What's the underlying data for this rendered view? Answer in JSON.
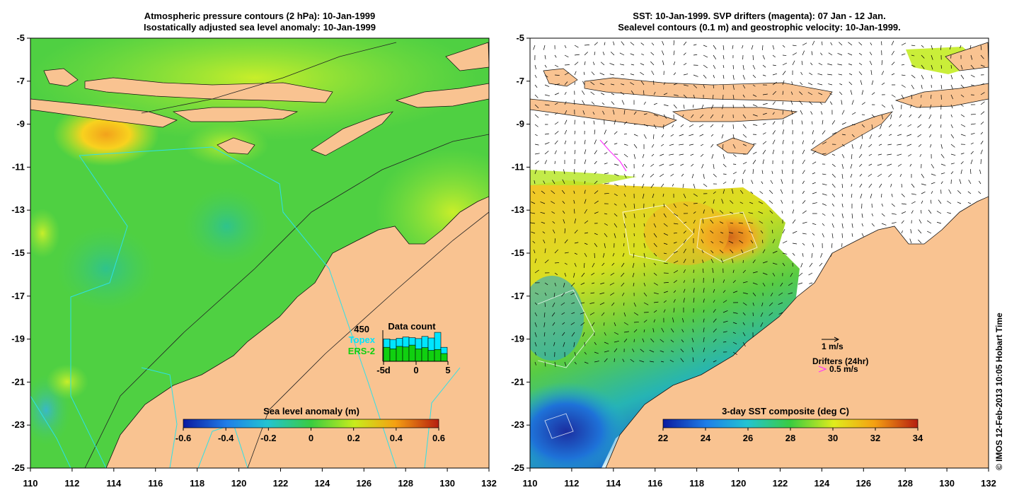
{
  "left_panel": {
    "title_line1": "Atmospheric pressure contours (2 hPa): 10-Jan-1999",
    "title_line2": "Isostatically adjusted sea level anomaly: 10-Jan-1999",
    "colorbar": {
      "title": "Sea level anomaly (m)",
      "ticks": [
        "-0.6",
        "-0.4",
        "-0.2",
        "0",
        "0.2",
        "0.4",
        "0.6"
      ]
    },
    "data_count": {
      "title": "Data count",
      "max_label": "450",
      "legend_topex": "Topex",
      "legend_ers2": "ERS-2",
      "x_ticks": [
        "-5d",
        "0",
        "5"
      ],
      "topex_values": [
        0.72,
        0.7,
        0.74,
        0.78,
        0.76,
        0.73,
        0.8,
        0.75,
        0.93,
        0.45
      ],
      "ers2_values": [
        0.45,
        0.4,
        0.48,
        0.46,
        0.52,
        0.4,
        0.44,
        0.35,
        0.38,
        0.25
      ]
    }
  },
  "right_panel": {
    "title_line1": "SST: 10-Jan-1999. SVP drifters (magenta): 07 Jan - 12 Jan.",
    "title_line2": "Sealevel contours (0.1 m) and geostrophic velocity: 10-Jan-1999.",
    "colorbar": {
      "title": "3-day SST composite (deg C)",
      "ticks": [
        "22",
        "24",
        "26",
        "28",
        "30",
        "32",
        "34"
      ]
    },
    "velocity_scale_label": "1 m/s",
    "drifter_legend_title": "Drifters (24hr)",
    "drifter_scale_label": "0.5 m/s"
  },
  "axes": {
    "y_ticks": [
      "-5",
      "-7",
      "-9",
      "-11",
      "-13",
      "-15",
      "-17",
      "-19",
      "-21",
      "-23",
      "-25"
    ],
    "x_ticks": [
      "110",
      "112",
      "114",
      "116",
      "118",
      "120",
      "122",
      "124",
      "126",
      "128",
      "130",
      "132"
    ]
  },
  "stamp": "© IMOS 12-Feb-2013 10:05 Hobart Time",
  "colors": {
    "land": "#f9c391",
    "ocean_green": "#5ad83a",
    "topex": "#00e5ff",
    "ers2": "#10d010",
    "drifter": "#ff33ff"
  }
}
